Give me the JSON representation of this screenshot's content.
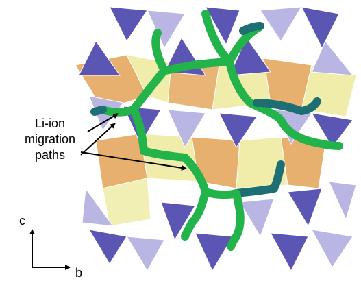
{
  "annotation": {
    "line1": "Li-ion",
    "line2": "migration",
    "line3": "paths"
  },
  "axes": {
    "vertical_label": "c",
    "horizontal_label": "b"
  },
  "colors": {
    "tetra_dark": "#5b55b3",
    "tetra_light": "#b9b6e3",
    "octa_orange": "#e3a255",
    "octa_yellow": "#ecea9a",
    "path_green": "#22b34a",
    "path_teal": "#1d6f73",
    "arrow": "#000000"
  }
}
